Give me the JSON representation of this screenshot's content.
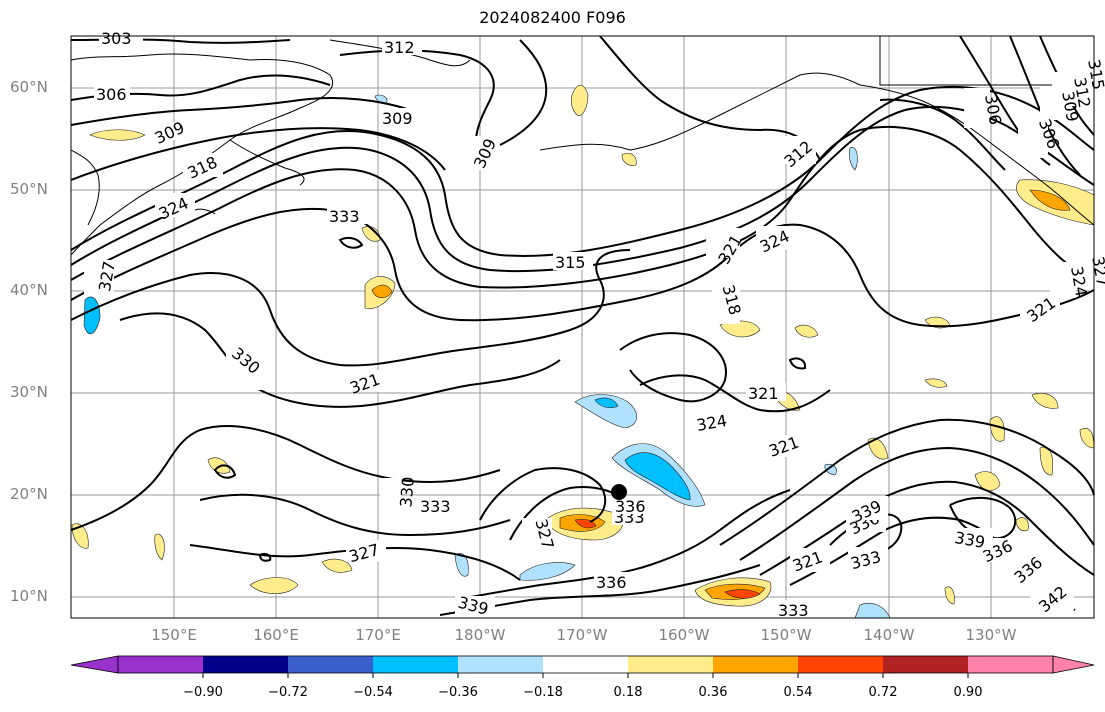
{
  "title": "2024082400 F096",
  "lat_labels": [
    "60°N",
    "50°N",
    "40°N",
    "30°N",
    "20°N",
    "10°N"
  ],
  "lon_labels": [
    "150°E",
    "160°E",
    "170°E",
    "180°W",
    "170°W",
    "160°W",
    "150°W",
    "140°W",
    "130°W"
  ],
  "colorbar": {
    "tick_labels": [
      "−0.90",
      "−0.72",
      "−0.54",
      "−0.36",
      "−0.18",
      "0.18",
      "0.36",
      "0.54",
      "0.72",
      "0.90"
    ],
    "colors": [
      "#9932cc",
      "#00008b",
      "#3a5fcd",
      "#00bfff",
      "#b0e2ff",
      "#ffffff",
      "#ffec8b",
      "#ffa500",
      "#ff4500",
      "#b22222",
      "#ff82ab"
    ]
  },
  "contour_labels": [
    "303",
    "306",
    "309",
    "309",
    "309",
    "312",
    "312",
    "315",
    "318",
    "318",
    "321",
    "321",
    "321",
    "321",
    "324",
    "324",
    "324",
    "327",
    "327",
    "330",
    "330",
    "333",
    "333",
    "333",
    "333",
    "336",
    "336",
    "336",
    "336",
    "339",
    "339",
    "339",
    "342",
    "315",
    "312",
    "309",
    "306",
    "306",
    "327",
    "324",
    "327",
    "321",
    "333",
    "321",
    "336"
  ],
  "storm_marker": "tropical-cyclone-center"
}
